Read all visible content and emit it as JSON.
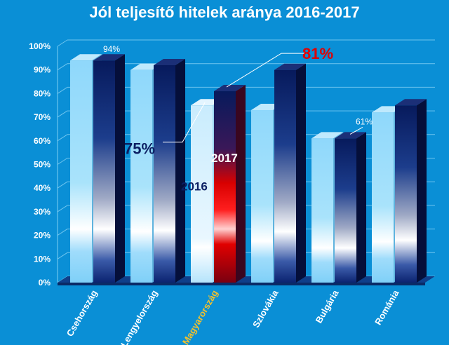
{
  "chart_data": {
    "type": "bar",
    "title": "Jól teljesítő hitelek aránya 2016-2017",
    "categories": [
      "Csehország",
      "Lengyelország",
      "Magyarország",
      "Szlovákia",
      "Bulgária",
      "Románia"
    ],
    "highlight_category": "Magyarország",
    "series": [
      {
        "name": "2016",
        "values": [
          94,
          90,
          75,
          73,
          61,
          72
        ]
      },
      {
        "name": "2017",
        "values": [
          94,
          92,
          81,
          90,
          61,
          75
        ]
      }
    ],
    "ylim": [
      0,
      100
    ],
    "yticks": [
      "0%",
      "10%",
      "20%",
      "30%",
      "40%",
      "50%",
      "60%",
      "70%",
      "80%",
      "90%",
      "100%"
    ],
    "grid": true,
    "annotations": {
      "cz_2017": "94%",
      "bg_2017": "61%",
      "hu_2016_value": "75%",
      "hu_2017_value": "81%",
      "hu_2016_series": "2016",
      "hu_2017_series": "2017"
    },
    "colors": {
      "background": "#0a8fd6",
      "series_2016": "#8fd8fb",
      "series_2017": "#0b1f63",
      "highlight_2017": "#e00000",
      "highlight_label": "#f2c12e",
      "value_81": "#e00000",
      "value_75": "#0b1f63"
    }
  }
}
